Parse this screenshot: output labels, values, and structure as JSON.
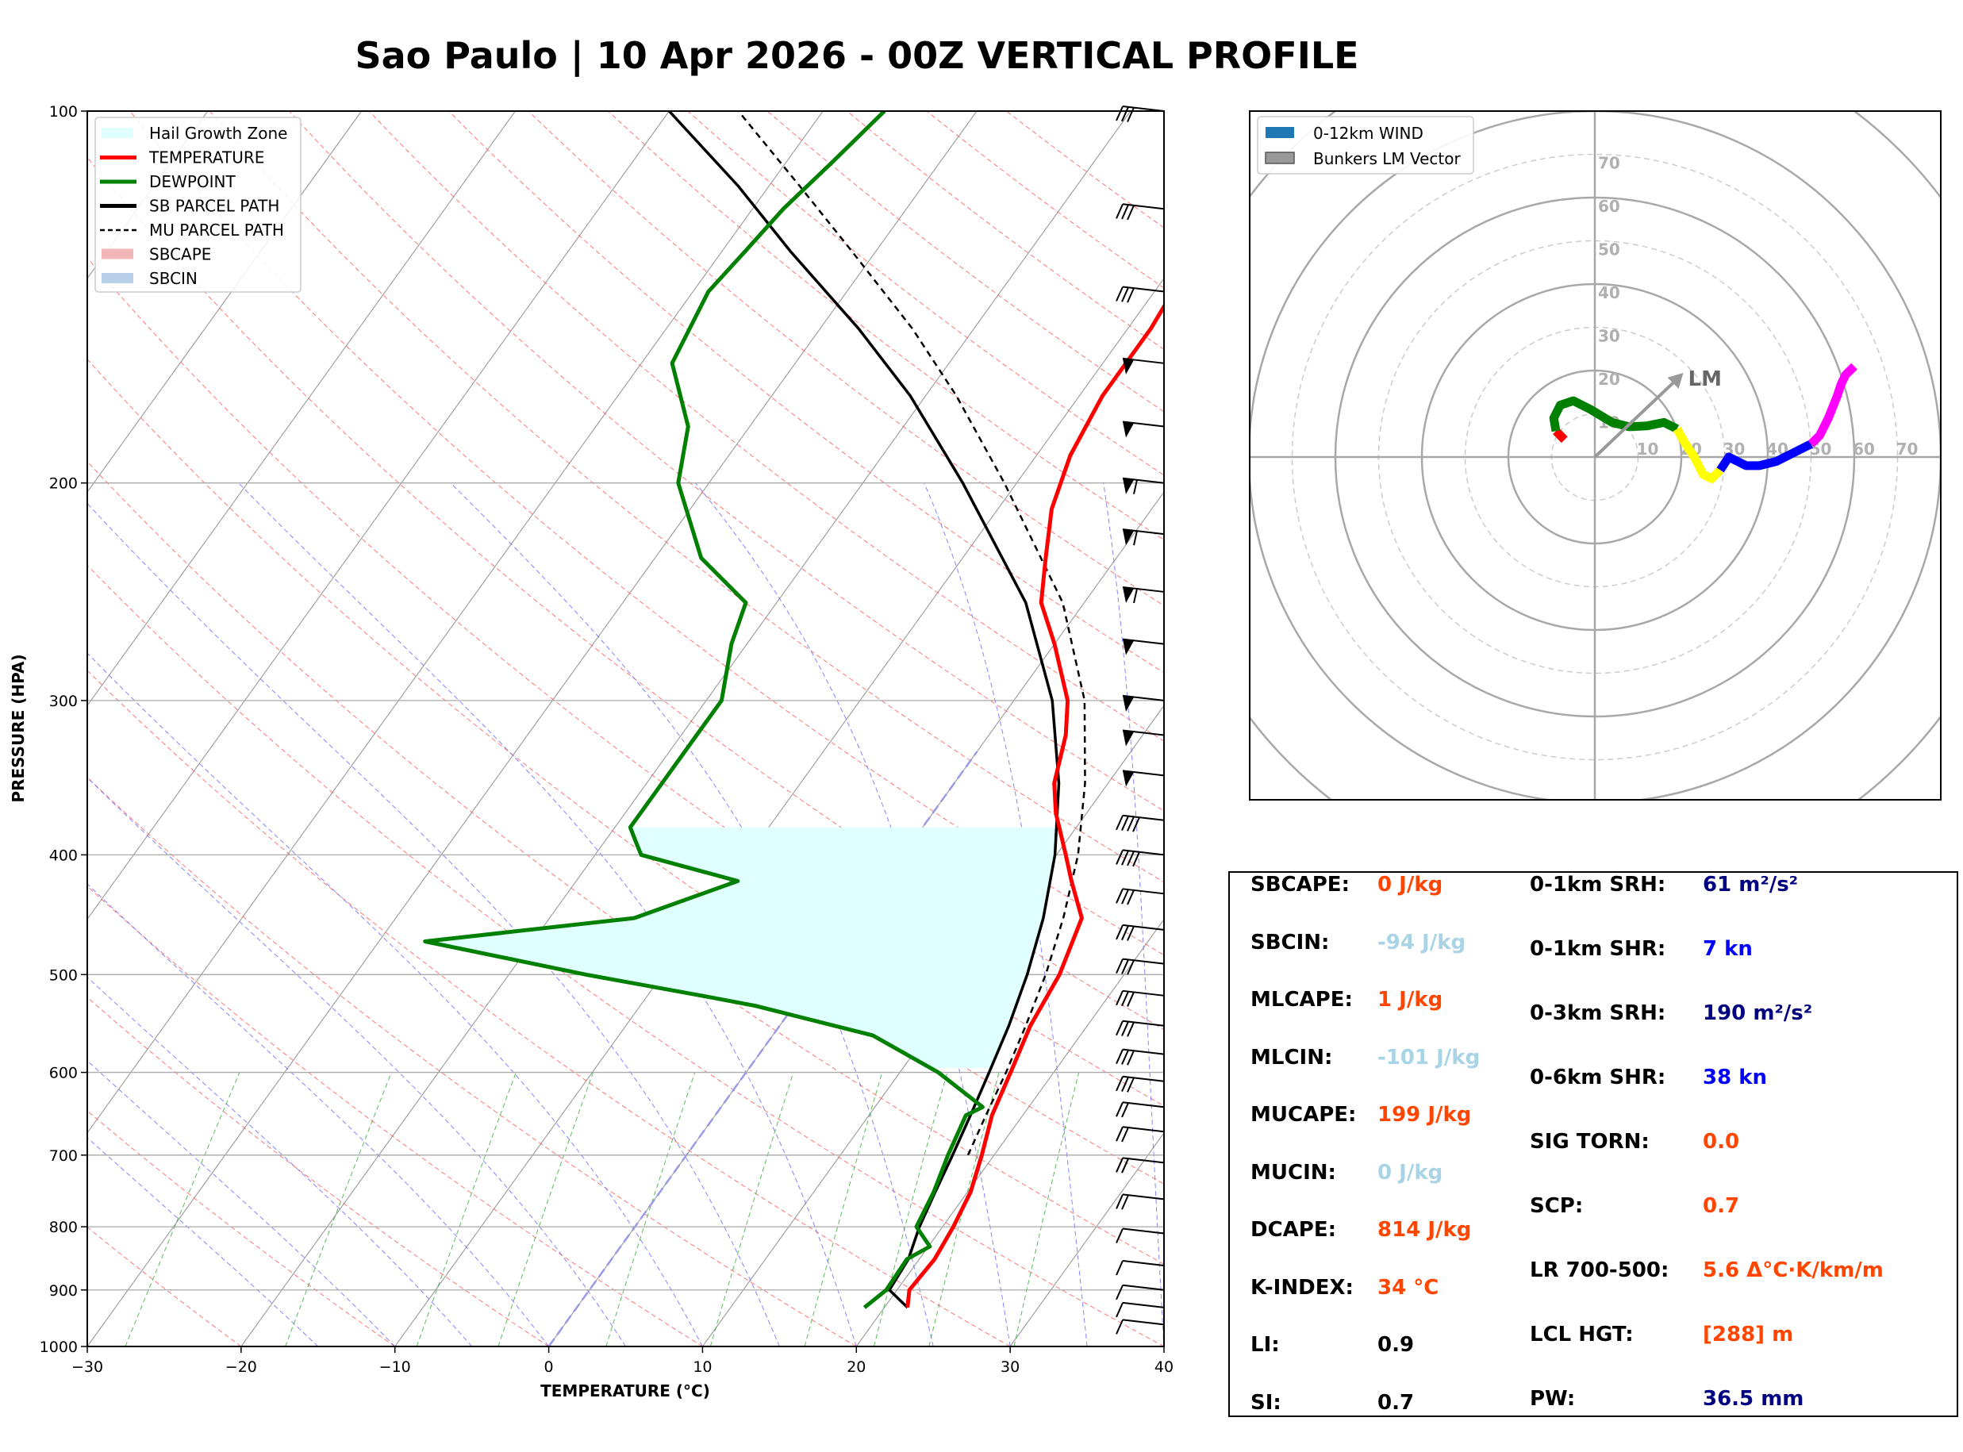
{
  "colors": {
    "temperature": "#ff0000",
    "dewpoint": "#008000",
    "parcel": "#000000",
    "hail_fill": "#e0ffff",
    "orange": "#ff4500",
    "light_blue": "#a8d4e6",
    "dark_navy": "#000080",
    "blue": "#0000ff"
  },
  "chart_data": {
    "type": "skew-t",
    "title": "Sao Paulo | 10 Apr 2026 - 00Z VERTICAL PROFILE",
    "xlabel": "TEMPERATURE (°C)",
    "ylabel": "PRESSURE (HPA)",
    "xlim": [
      -30,
      40
    ],
    "ylim": [
      1000,
      100
    ],
    "xticks": [
      -30,
      -20,
      -10,
      0,
      10,
      20,
      30,
      40
    ],
    "xtick_labels": [
      "−30",
      "−20",
      "−10",
      "0",
      "10",
      "20",
      "30",
      "40"
    ],
    "yticks": [
      1000,
      900,
      800,
      700,
      600,
      500,
      400,
      300,
      200,
      100
    ],
    "ytick_labels": [
      "1000",
      "900",
      "800",
      "700",
      "600",
      "500",
      "400",
      "300",
      "200",
      "100"
    ],
    "legend": [
      {
        "label": "Hail Growth Zone",
        "style": "fill",
        "color": "#e0ffff"
      },
      {
        "label": "TEMPERATURE",
        "style": "line",
        "color": "#ff0000"
      },
      {
        "label": "DEWPOINT",
        "style": "line",
        "color": "#008000"
      },
      {
        "label": "SB PARCEL PATH",
        "style": "line",
        "color": "#000000"
      },
      {
        "label": "MU PARCEL PATH",
        "style": "dashed",
        "color": "#000000"
      },
      {
        "label": "SBCAPE",
        "style": "fill",
        "color": "#f4b6b6"
      },
      {
        "label": "SBCIN",
        "style": "fill",
        "color": "#b7cfe8"
      }
    ],
    "legend_position": "top-left",
    "series": [
      {
        "name": "TEMPERATURE",
        "values": [
          [
            930,
            21.5
          ],
          [
            900,
            20.8
          ],
          [
            850,
            21.0
          ],
          [
            800,
            20.7
          ],
          [
            750,
            20.2
          ],
          [
            700,
            19.2
          ],
          [
            650,
            18.0
          ],
          [
            600,
            17.2
          ],
          [
            550,
            16.3
          ],
          [
            500,
            15.8
          ],
          [
            450,
            14.6
          ],
          [
            420,
            12.2
          ],
          [
            400,
            10.6
          ],
          [
            370,
            8.0
          ],
          [
            350,
            6.5
          ],
          [
            320,
            5.0
          ],
          [
            300,
            3.5
          ],
          [
            270,
            0.0
          ],
          [
            250,
            -2.8
          ],
          [
            230,
            -4.6
          ],
          [
            210,
            -6.5
          ],
          [
            190,
            -7.8
          ],
          [
            170,
            -8.5
          ],
          [
            160,
            -8.5
          ],
          [
            150,
            -8.5
          ],
          [
            140,
            -8.8
          ],
          [
            120,
            -9.2
          ],
          [
            110,
            -8.3
          ],
          [
            100,
            -7.3
          ]
        ]
      },
      {
        "name": "DEWPOINT",
        "values": [
          [
            930,
            18.7
          ],
          [
            900,
            19.3
          ],
          [
            850,
            19.2
          ],
          [
            830,
            20.1
          ],
          [
            800,
            18.3
          ],
          [
            750,
            17.8
          ],
          [
            700,
            17.0
          ],
          [
            650,
            16.3
          ],
          [
            640,
            17.0
          ],
          [
            600,
            12.5
          ],
          [
            560,
            6.5
          ],
          [
            530,
            -2.5
          ],
          [
            520,
            -6.5
          ],
          [
            500,
            -15.0
          ],
          [
            470,
            -27.0
          ],
          [
            450,
            -14.5
          ],
          [
            420,
            -9.5
          ],
          [
            400,
            -17.0
          ],
          [
            390,
            -18.0
          ],
          [
            380,
            -19.0
          ],
          [
            350,
            -19.0
          ],
          [
            320,
            -19.0
          ],
          [
            300,
            -19.0
          ],
          [
            270,
            -21.0
          ],
          [
            250,
            -22.0
          ],
          [
            230,
            -27.0
          ],
          [
            200,
            -32.0
          ],
          [
            180,
            -34.0
          ],
          [
            160,
            -38.0
          ],
          [
            140,
            -39.0
          ],
          [
            130,
            -38.5
          ],
          [
            120,
            -38.0
          ],
          [
            110,
            -37.0
          ],
          [
            100,
            -36.0
          ]
        ]
      },
      {
        "name": "SB PARCEL PATH",
        "values": [
          [
            930,
            21.5
          ],
          [
            900,
            19.5
          ],
          [
            850,
            19.3
          ],
          [
            800,
            18.5
          ],
          [
            750,
            17.9
          ],
          [
            700,
            17.3
          ],
          [
            650,
            16.6
          ],
          [
            600,
            15.8
          ],
          [
            550,
            14.9
          ],
          [
            500,
            13.7
          ],
          [
            450,
            12.1
          ],
          [
            400,
            9.9
          ],
          [
            350,
            6.8
          ],
          [
            300,
            2.5
          ],
          [
            250,
            -3.8
          ],
          [
            200,
            -13.5
          ],
          [
            170,
            -21.0
          ],
          [
            150,
            -27.5
          ],
          [
            130,
            -35.5
          ],
          [
            115,
            -42.0
          ],
          [
            100,
            -50.0
          ]
        ]
      },
      {
        "name": "MU PARCEL PATH",
        "values": [
          [
            700,
            18.3
          ],
          [
            650,
            17.6
          ],
          [
            600,
            16.9
          ],
          [
            550,
            16.0
          ],
          [
            500,
            14.9
          ],
          [
            450,
            13.4
          ],
          [
            400,
            11.4
          ],
          [
            350,
            8.5
          ],
          [
            300,
            4.6
          ],
          [
            250,
            -1.4
          ],
          [
            200,
            -10.8
          ],
          [
            170,
            -18.0
          ],
          [
            150,
            -24.0
          ],
          [
            130,
            -31.5
          ],
          [
            115,
            -38.0
          ],
          [
            100,
            -45.5
          ]
        ]
      }
    ],
    "hail_growth_zone": {
      "top_hpa": 380,
      "bottom_hpa": 595
    },
    "wind_barbs": [
      {
        "p": 100,
        "barb": "3 long"
      },
      {
        "p": 120,
        "barb": "3 long"
      },
      {
        "p": 140,
        "barb": "3 long"
      },
      {
        "p": 160,
        "barb": "flag"
      },
      {
        "p": 180,
        "barb": "flag"
      },
      {
        "p": 200,
        "barb": "flag+1"
      },
      {
        "p": 220,
        "barb": "flag+1"
      },
      {
        "p": 245,
        "barb": "flag+1"
      },
      {
        "p": 270,
        "barb": "flag"
      },
      {
        "p": 300,
        "barb": "flag"
      },
      {
        "p": 320,
        "barb": "flag"
      },
      {
        "p": 345,
        "barb": "flag"
      },
      {
        "p": 375,
        "barb": "4 long"
      },
      {
        "p": 400,
        "barb": "4 long"
      },
      {
        "p": 430,
        "barb": "3 long"
      },
      {
        "p": 460,
        "barb": "3 long"
      },
      {
        "p": 490,
        "barb": "3 long"
      },
      {
        "p": 520,
        "barb": "3 long"
      },
      {
        "p": 550,
        "barb": "3 long"
      },
      {
        "p": 580,
        "barb": "3 long"
      },
      {
        "p": 610,
        "barb": "3 long"
      },
      {
        "p": 640,
        "barb": "2 long"
      },
      {
        "p": 670,
        "barb": "2 long"
      },
      {
        "p": 710,
        "barb": "2 long"
      },
      {
        "p": 760,
        "barb": "2 long"
      },
      {
        "p": 810,
        "barb": "1 long"
      },
      {
        "p": 860,
        "barb": "1 long"
      },
      {
        "p": 900,
        "barb": "1 long"
      },
      {
        "p": 930,
        "barb": "1 long"
      },
      {
        "p": 960,
        "barb": "1 long"
      }
    ]
  },
  "hodograph": {
    "type": "hodograph",
    "legend": [
      {
        "label": "0-12km WIND",
        "color": "#1f77b4"
      },
      {
        "label": "Bunkers LM Vector",
        "color": "#999999"
      }
    ],
    "range_labels": [
      "10",
      "20",
      "30",
      "40",
      "50",
      "60",
      "70"
    ],
    "ring_values": [
      10,
      20,
      30,
      40,
      50,
      60,
      70,
      80
    ],
    "lm_label": "LM",
    "lm_vector": {
      "u": 19,
      "v": 18
    },
    "segments": [
      {
        "color": "#ff0000",
        "points": [
          [
            -9,
            6
          ],
          [
            -7,
            4
          ]
        ]
      },
      {
        "color": "#008000",
        "points": [
          [
            -9,
            6
          ],
          [
            -9.5,
            9
          ],
          [
            -8,
            12
          ],
          [
            -5,
            13
          ],
          [
            -1,
            11
          ],
          [
            4,
            8
          ],
          [
            8,
            7
          ],
          [
            12,
            7.2
          ],
          [
            16,
            8
          ],
          [
            19,
            6.5
          ]
        ]
      },
      {
        "color": "#ffff00",
        "points": [
          [
            19,
            6.5
          ],
          [
            21,
            3
          ],
          [
            23,
            0
          ],
          [
            25,
            -4
          ],
          [
            27,
            -5
          ],
          [
            29,
            -3
          ]
        ]
      },
      {
        "color": "#0000ff",
        "points": [
          [
            29,
            -3
          ],
          [
            31,
            0
          ],
          [
            33,
            -1
          ],
          [
            35,
            -2
          ],
          [
            38,
            -2
          ],
          [
            42,
            -1
          ],
          [
            46,
            1
          ],
          [
            50,
            3
          ]
        ]
      },
      {
        "color": "#ff00ff",
        "points": [
          [
            50,
            3
          ],
          [
            52,
            5
          ],
          [
            54,
            9
          ],
          [
            56,
            14
          ],
          [
            57,
            17
          ],
          [
            58,
            19
          ],
          [
            60,
            21
          ]
        ]
      }
    ]
  },
  "stats": {
    "col1": [
      {
        "label": "SBCAPE:",
        "value": "0 J/kg",
        "color": "#ff4500"
      },
      {
        "label": "SBCIN:",
        "value": "-94 J/kg",
        "color": "#a8d4e6"
      },
      {
        "label": "MLCAPE:",
        "value": "1 J/kg",
        "color": "#ff4500"
      },
      {
        "label": "MLCIN:",
        "value": "-101 J/kg",
        "color": "#a8d4e6"
      },
      {
        "label": "MUCAPE:",
        "value": "199 J/kg",
        "color": "#ff4500"
      },
      {
        "label": "MUCIN:",
        "value": "0 J/kg",
        "color": "#a8d4e6"
      },
      {
        "label": "DCAPE:",
        "value": "814 J/kg",
        "color": "#ff4500"
      },
      {
        "label": "K-INDEX:",
        "value": "34 °C",
        "color": "#ff4500"
      },
      {
        "label": "LI:",
        "value": "0.9",
        "color": "#000000"
      },
      {
        "label": "SI:",
        "value": "0.7",
        "color": "#000000"
      }
    ],
    "col2": [
      {
        "label": "0-1km SRH:",
        "value": "61 m²/s²",
        "color": "#000080"
      },
      {
        "label": "0-1km SHR:",
        "value": "7 kn",
        "color": "#0000ff"
      },
      {
        "label": "0-3km SRH:",
        "value": "190 m²/s²",
        "color": "#000080"
      },
      {
        "label": "0-6km SHR:",
        "value": "38 kn",
        "color": "#0000ff"
      },
      {
        "label": "SIG TORN:",
        "value": "0.0",
        "color": "#ff4500"
      },
      {
        "label": "SCP:",
        "value": "0.7",
        "color": "#ff4500"
      },
      {
        "label": "LR 700-500:",
        "value": "5.6 Δ°C·K/km/m",
        "color": "#ff4500"
      },
      {
        "label": "LCL HGT:",
        "value": "[288] m",
        "color": "#ff4500"
      },
      {
        "label": "PW:",
        "value": "36.5 mm",
        "color": "#000080"
      }
    ]
  }
}
